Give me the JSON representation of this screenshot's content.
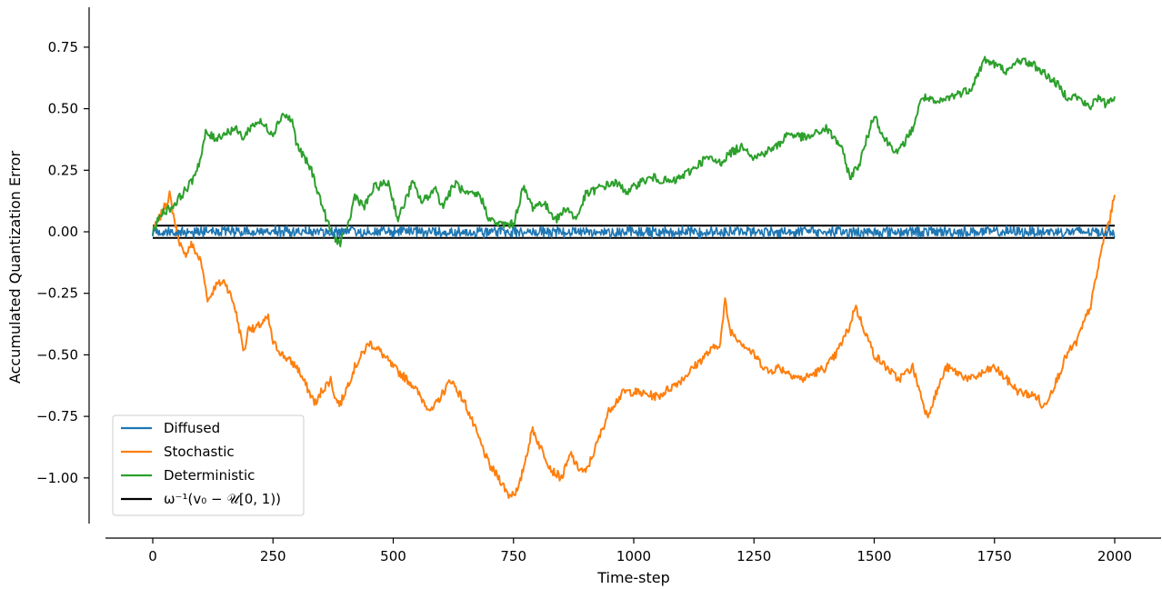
{
  "chart_data": {
    "type": "line",
    "title": "",
    "xlabel": "Time-step",
    "ylabel": "Accumulated Quantization Error",
    "xlim": [
      -100,
      2100
    ],
    "ylim": [
      -1.18,
      0.92
    ],
    "xticks": [
      0,
      250,
      500,
      750,
      1000,
      1250,
      1500,
      1750,
      2000
    ],
    "xtick_labels": [
      "0",
      "250",
      "500",
      "750",
      "1000",
      "1250",
      "1500",
      "1750",
      "2000"
    ],
    "yticks": [
      -1.0,
      -0.75,
      -0.5,
      -0.25,
      0.0,
      0.25,
      0.5,
      0.75
    ],
    "ytick_labels": [
      "−1.00",
      "−0.75",
      "−0.50",
      "−0.25",
      "0.00",
      "0.25",
      "0.50",
      "0.75"
    ],
    "grid": false,
    "legend_position": "lower-left",
    "legend": [
      "Diffused",
      "Stochastic",
      "Deterministic",
      "ω⁻¹(v₀ − 𝒰[0, 1))"
    ],
    "series": [
      {
        "name": "Diffused",
        "color": "#1f77b4",
        "kind": "band-noise",
        "x": [
          0,
          2000
        ],
        "amplitude": 0.025
      },
      {
        "name": "Stochastic",
        "color": "#ff7f0e",
        "x": [
          0,
          20,
          35,
          50,
          65,
          80,
          100,
          115,
          130,
          150,
          170,
          190,
          200,
          210,
          240,
          250,
          270,
          300,
          330,
          340,
          350,
          370,
          380,
          390,
          420,
          450,
          470,
          500,
          540,
          560,
          580,
          620,
          650,
          670,
          700,
          720,
          740,
          760,
          780,
          790,
          800,
          830,
          850,
          870,
          880,
          900,
          920,
          950,
          980,
          1000,
          1050,
          1100,
          1150,
          1180,
          1190,
          1200,
          1250,
          1280,
          1300,
          1330,
          1350,
          1400,
          1420,
          1450,
          1460,
          1480,
          1500,
          1550,
          1580,
          1610,
          1620,
          1650,
          1700,
          1750,
          1800,
          1840,
          1850,
          1880,
          1900,
          1920,
          1950,
          1970,
          1980,
          1990,
          2000
        ],
        "y": [
          0.0,
          0.08,
          0.15,
          0.0,
          -0.1,
          -0.05,
          -0.12,
          -0.28,
          -0.22,
          -0.2,
          -0.3,
          -0.49,
          -0.38,
          -0.4,
          -0.35,
          -0.45,
          -0.5,
          -0.55,
          -0.67,
          -0.7,
          -0.65,
          -0.6,
          -0.68,
          -0.7,
          -0.55,
          -0.45,
          -0.48,
          -0.55,
          -0.62,
          -0.68,
          -0.73,
          -0.6,
          -0.7,
          -0.8,
          -0.95,
          -1.0,
          -1.07,
          -1.05,
          -0.88,
          -0.8,
          -0.85,
          -0.97,
          -1.0,
          -0.9,
          -0.95,
          -0.98,
          -0.88,
          -0.72,
          -0.65,
          -0.65,
          -0.67,
          -0.6,
          -0.5,
          -0.45,
          -0.28,
          -0.4,
          -0.5,
          -0.57,
          -0.55,
          -0.58,
          -0.6,
          -0.55,
          -0.5,
          -0.38,
          -0.3,
          -0.4,
          -0.5,
          -0.6,
          -0.55,
          -0.75,
          -0.7,
          -0.55,
          -0.6,
          -0.55,
          -0.65,
          -0.67,
          -0.72,
          -0.6,
          -0.5,
          -0.45,
          -0.3,
          -0.1,
          0.0,
          0.05,
          0.15
        ]
      },
      {
        "name": "Deterministic",
        "color": "#2ca02c",
        "x": [
          0,
          20,
          40,
          60,
          80,
          100,
          110,
          130,
          150,
          170,
          190,
          200,
          220,
          250,
          270,
          290,
          300,
          330,
          350,
          370,
          390,
          400,
          410,
          420,
          440,
          460,
          490,
          510,
          540,
          560,
          590,
          600,
          630,
          650,
          680,
          700,
          720,
          750,
          770,
          790,
          810,
          840,
          860,
          880,
          900,
          930,
          960,
          990,
          1010,
          1040,
          1080,
          1120,
          1150,
          1180,
          1200,
          1230,
          1250,
          1280,
          1300,
          1320,
          1360,
          1400,
          1430,
          1450,
          1470,
          1500,
          1520,
          1550,
          1580,
          1600,
          1630,
          1660,
          1700,
          1730,
          1750,
          1780,
          1800,
          1830,
          1850,
          1880,
          1900,
          1920,
          1950,
          1960,
          1980,
          2000
        ],
        "y": [
          0.0,
          0.08,
          0.1,
          0.15,
          0.2,
          0.3,
          0.4,
          0.38,
          0.4,
          0.42,
          0.38,
          0.42,
          0.45,
          0.4,
          0.48,
          0.45,
          0.35,
          0.25,
          0.12,
          0.0,
          -0.05,
          0.0,
          0.05,
          0.15,
          0.1,
          0.18,
          0.2,
          0.05,
          0.2,
          0.12,
          0.18,
          0.1,
          0.2,
          0.15,
          0.15,
          0.05,
          0.03,
          0.03,
          0.18,
          0.1,
          0.12,
          0.05,
          0.1,
          0.05,
          0.15,
          0.18,
          0.2,
          0.16,
          0.2,
          0.22,
          0.2,
          0.25,
          0.3,
          0.28,
          0.32,
          0.35,
          0.3,
          0.33,
          0.35,
          0.4,
          0.38,
          0.42,
          0.35,
          0.22,
          0.28,
          0.48,
          0.38,
          0.32,
          0.42,
          0.55,
          0.52,
          0.55,
          0.58,
          0.7,
          0.68,
          0.65,
          0.7,
          0.68,
          0.65,
          0.6,
          0.55,
          0.55,
          0.5,
          0.55,
          0.52,
          0.55
        ]
      },
      {
        "name": "ω⁻¹(v₀ − 𝒰[0, 1))",
        "color": "#000000",
        "kind": "bounds",
        "x": [
          0,
          2000
        ],
        "y_values": [
          0.025,
          -0.025
        ]
      }
    ]
  }
}
